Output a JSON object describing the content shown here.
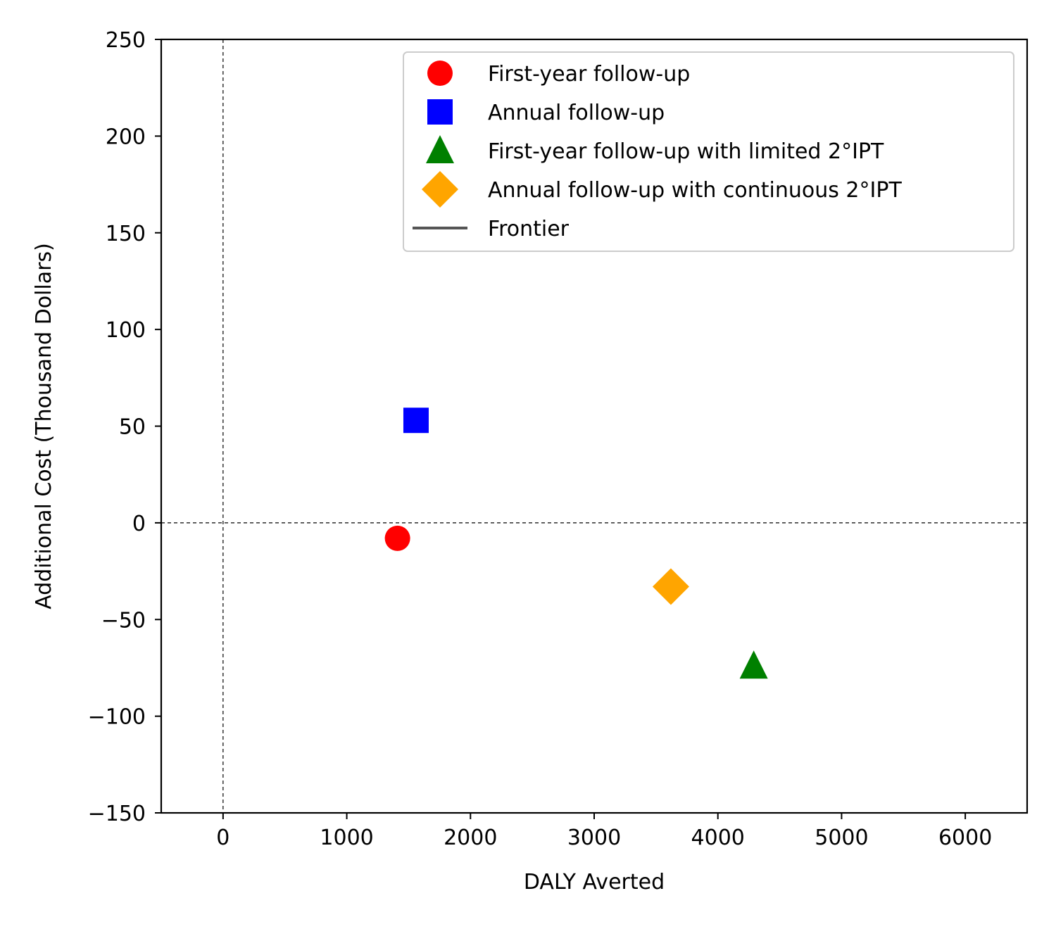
{
  "chart_data": {
    "type": "scatter",
    "xlabel": "DALY Averted",
    "ylabel": "Additional Cost (Thousand Dollars)",
    "xlim": [
      -500,
      6500
    ],
    "ylim": [
      -150,
      250
    ],
    "xticks": [
      0,
      1000,
      2000,
      3000,
      4000,
      5000,
      6000
    ],
    "yticks": [
      -150,
      -100,
      -50,
      0,
      50,
      100,
      150,
      200,
      250
    ],
    "reference_lines": {
      "x": 0,
      "y": 0,
      "style": "dashed"
    },
    "grid": false,
    "legend_position": "upper-right",
    "series": [
      {
        "name": "First-year follow-up",
        "marker": "circle",
        "color": "#ff0000",
        "x": 1410,
        "y": -8
      },
      {
        "name": "Annual follow-up",
        "marker": "square",
        "color": "#0000ff",
        "x": 1560,
        "y": 53
      },
      {
        "name": "First-year follow-up with limited 2°IPT",
        "marker": "triangle",
        "color": "#008000",
        "x": 4290,
        "y": -74
      },
      {
        "name": "Annual follow-up with continuous 2°IPT",
        "marker": "diamond",
        "color": "#ffa500",
        "x": 3620,
        "y": -33
      },
      {
        "name": "Frontier",
        "marker": "line",
        "color": "#555555"
      }
    ]
  }
}
